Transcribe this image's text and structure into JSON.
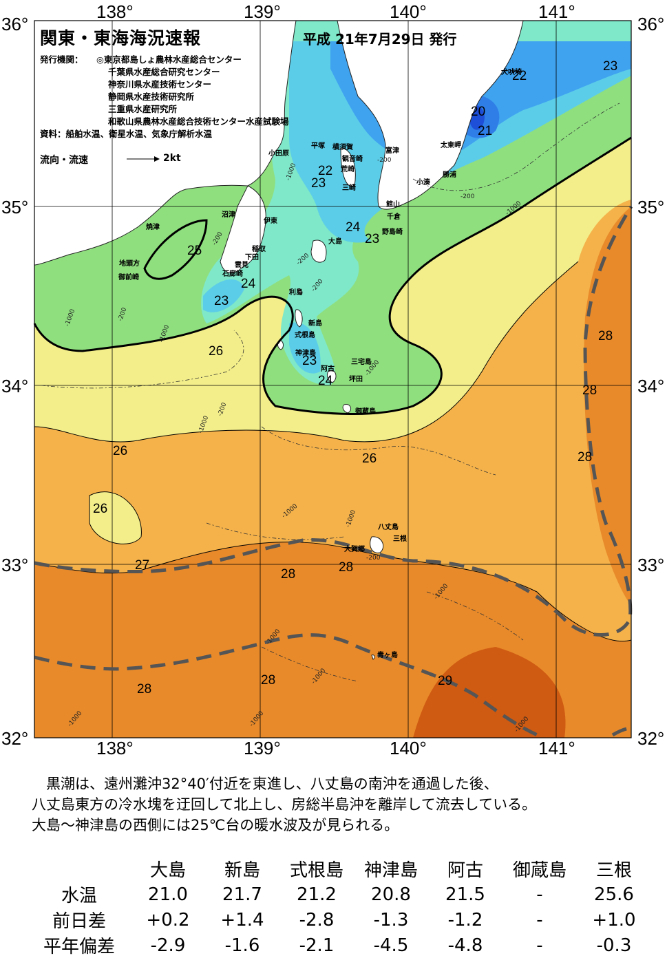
{
  "header": {
    "title": "関東・東海海況速報",
    "date": "平成 21年7月29日 発行",
    "issuer_label": "発行機関：",
    "issuers": [
      "◎東京都島しょ農林水産総合センター",
      "千葉県水産総合研究センター",
      "神奈川県水産技術センター",
      "静岡県水産技術研究所",
      "三重県水産研究所",
      "和歌山県農林水産総合技術センター水産試験場"
    ],
    "sources": "資料：船舶水温、衛星水温、気象庁解析水温",
    "legend_label": "流向・流速",
    "legend_speed": "2kt"
  },
  "axes": {
    "lon_ticks": [
      "138°",
      "139°",
      "140°",
      "141°"
    ],
    "lat_ticks": [
      "36°",
      "35°",
      "34°",
      "33°",
      "32°"
    ]
  },
  "place_names": {
    "inubozaki": "犬吠埼",
    "taitomisaki": "太東岬",
    "katsuura": "勝浦",
    "kominato": "小湊",
    "futtsu": "富津",
    "yokosuka": "横須賀",
    "kannonzaki": "観音崎",
    "arasaki": "荒崎",
    "hiratsuka": "平塚",
    "odawara": "小田原",
    "misaki": "三崎",
    "tateyama": "館山",
    "chikura": "千倉",
    "nojimazaki": "野島崎",
    "numazu": "沼津",
    "ito": "伊東",
    "inatori": "稲取",
    "shimoda": "下田",
    "mera": "雲見",
    "irozaki": "石廊崎",
    "yaizu": "焼津",
    "jitokata": "地頭方",
    "omaezaki": "御前崎",
    "oshima": "大島",
    "toshima": "利島",
    "niijima": "新島",
    "shikinejima": "式根島",
    "kozushima": "神津島",
    "miyakejima": "三宅島",
    "ako": "阿古",
    "tsubota": "坪田",
    "mikurajima": "御蔵島",
    "hachijojima": "八丈島",
    "mitsune": "三根",
    "okago": "大賀郷",
    "aogashima": "青ヶ島"
  },
  "temperature_labels": [
    "23",
    "22",
    "20",
    "21",
    "22",
    "23",
    "24",
    "23",
    "25",
    "24",
    "23",
    "26",
    "23",
    "24",
    "28",
    "28",
    "28",
    "26",
    "26",
    "26",
    "27",
    "28",
    "28",
    "28",
    "28",
    "29"
  ],
  "depth_labels": [
    "-200",
    "-200",
    "-1000",
    "-1000",
    "-200",
    "-200",
    "-1000",
    "-200",
    "-200",
    "-1000",
    "-200",
    "-1000",
    "-1000",
    "-1000",
    "-1000",
    "-1000",
    "-1000",
    "-1000",
    "-1000",
    "-1000",
    "-1000",
    "-200"
  ],
  "colors": {
    "t20": "#1d4fd8",
    "t21": "#2f7ee8",
    "t22": "#3fa3f0",
    "t23": "#5ccde8",
    "t24": "#7fe8c8",
    "t25": "#8fdf7f",
    "t26": "#f3ee8a",
    "t27": "#f5b24a",
    "t28": "#e88a2a",
    "t29": "#cf5a12",
    "land": "#ffffff",
    "kuroshio": "#555555"
  },
  "summary": [
    "　黒潮は、遠州灘沖32°40′付近を東進し、八丈島の南沖を通過した後、",
    "八丈島東方の冷水塊を迂回して北上し、房総半島沖を離岸して流去している。",
    "大島～神津島の西側には25℃台の暖水波及が見られる。"
  ],
  "table": {
    "stations": [
      "大島",
      "新島",
      "式根島",
      "神津島",
      "阿古",
      "御蔵島",
      "三根"
    ],
    "rows": [
      {
        "label": "水温",
        "values": [
          "21.0",
          "21.7",
          "21.2",
          "20.8",
          "21.5",
          "-",
          "25.6"
        ]
      },
      {
        "label": "前日差",
        "values": [
          "+0.2",
          "+1.4",
          "-2.8",
          "-1.3",
          "-1.2",
          "-",
          "+1.0"
        ]
      },
      {
        "label": "平年偏差",
        "values": [
          "-2.9",
          "-1.6",
          "-2.1",
          "-4.5",
          "-4.8",
          "-",
          "-0.3"
        ]
      }
    ]
  }
}
